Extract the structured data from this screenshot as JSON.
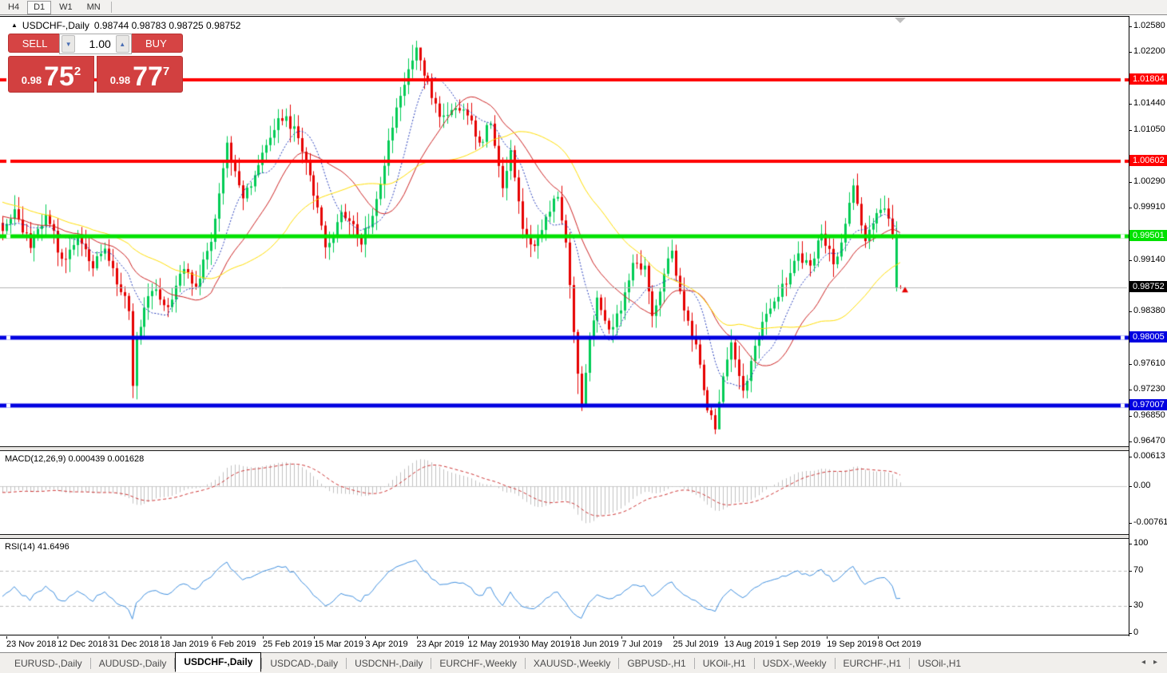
{
  "timeframe_bar": {
    "items": [
      {
        "label": "H4",
        "active": false
      },
      {
        "label": "D1",
        "active": true
      },
      {
        "label": "W1",
        "active": false
      },
      {
        "label": "MN",
        "active": false
      }
    ]
  },
  "chart_header": {
    "collapse_icon": "▲",
    "symbol": "USDCHF-,Daily",
    "open": "0.98744",
    "high": "0.98783",
    "low": "0.98725",
    "close": "0.98752",
    "ohlc_text": "0.98744 0.98783 0.98725 0.98752"
  },
  "trade_panel": {
    "sell_label": "SELL",
    "buy_label": "BUY",
    "volume": "1.00",
    "spin_down_icon": "▼",
    "spin_up_icon": "▲",
    "sell_price_small": "0.98",
    "sell_price_big": "75",
    "sell_price_sup": "2",
    "buy_price_small": "0.98",
    "buy_price_big": "77",
    "buy_price_sup": "7"
  },
  "chart_data": {
    "type": "candlestick",
    "symbol": "USDCHF",
    "timeframe": "Daily",
    "price_range": {
      "top": 1.0258,
      "bottom": 0.9647
    },
    "price_axis_ticks": [
      {
        "label": "1.02580",
        "value": 1.0258
      },
      {
        "label": "1.02200",
        "value": 1.022
      },
      {
        "label": "1.01440",
        "value": 1.0144
      },
      {
        "label": "1.01050",
        "value": 1.0105
      },
      {
        "label": "1.00290",
        "value": 1.0029
      },
      {
        "label": "0.99910",
        "value": 0.9991
      },
      {
        "label": "0.99140",
        "value": 0.9914
      },
      {
        "label": "0.98380",
        "value": 0.9838
      },
      {
        "label": "0.97610",
        "value": 0.9761
      },
      {
        "label": "0.97230",
        "value": 0.9723
      },
      {
        "label": "0.96850",
        "value": 0.9685
      },
      {
        "label": "0.96470",
        "value": 0.9647
      }
    ],
    "level_lines": [
      {
        "label": "1.01804",
        "value": 1.01804,
        "color": "#ff0000",
        "thickness": 4
      },
      {
        "label": "1.00602",
        "value": 1.00602,
        "color": "#ff0000",
        "thickness": 4
      },
      {
        "label": "0.99501",
        "value": 0.99501,
        "color": "#00e100",
        "thickness": 5
      },
      {
        "label": "0.98005",
        "value": 0.98005,
        "color": "#0000e0",
        "thickness": 5
      },
      {
        "label": "0.97007",
        "value": 0.97007,
        "color": "#0000e0",
        "thickness": 5
      }
    ],
    "current_price": {
      "label": "0.98752",
      "value": 0.98752,
      "line_color": "#b4b4b4",
      "label_bg": "#000000"
    },
    "x_dates": [
      "23 Nov 2018",
      "12 Dec 2018",
      "31 Dec 2018",
      "18 Jan 2019",
      "6 Feb 2019",
      "25 Feb 2019",
      "15 Mar 2019",
      "3 Apr 2019",
      "23 Apr 2019",
      "12 May 2019",
      "30 May 2019",
      "18 Jun 2019",
      "7 Jul 2019",
      "25 Jul 2019",
      "13 Aug 2019",
      "1 Sep 2019",
      "19 Sep 2019",
      "8 Oct 2019"
    ],
    "candles": {
      "count": 229,
      "close_anchors": [
        [
          0,
          0.9958
        ],
        [
          3,
          0.999
        ],
        [
          7,
          0.9933
        ],
        [
          11,
          0.9982
        ],
        [
          15,
          0.9917
        ],
        [
          19,
          0.9948
        ],
        [
          23,
          0.9903
        ],
        [
          26,
          0.9932
        ],
        [
          30,
          0.9868
        ],
        [
          32,
          0.984
        ],
        [
          33,
          0.973
        ],
        [
          34,
          0.98
        ],
        [
          36,
          0.9845
        ],
        [
          39,
          0.9872
        ],
        [
          42,
          0.9846
        ],
        [
          46,
          0.9902
        ],
        [
          49,
          0.9876
        ],
        [
          53,
          0.9942
        ],
        [
          57,
          1.0088
        ],
        [
          61,
          1.0006
        ],
        [
          65,
          1.0055
        ],
        [
          70,
          1.0124
        ],
        [
          74,
          1.0112
        ],
        [
          78,
          1.004
        ],
        [
          82,
          0.9934
        ],
        [
          86,
          0.9986
        ],
        [
          89,
          0.9968
        ],
        [
          91,
          0.9938
        ],
        [
          95,
          1.0005
        ],
        [
          99,
          1.011
        ],
        [
          103,
          1.0196
        ],
        [
          105,
          1.0228
        ],
        [
          108,
          1.0178
        ],
        [
          111,
          1.0126
        ],
        [
          114,
          1.0136
        ],
        [
          118,
          1.0128
        ],
        [
          121,
          1.0088
        ],
        [
          124,
          1.0116
        ],
        [
          127,
          1.0021
        ],
        [
          129,
          1.0077
        ],
        [
          132,
          0.9961
        ],
        [
          135,
          0.9936
        ],
        [
          138,
          0.9979
        ],
        [
          141,
          1.0008
        ],
        [
          143,
          0.9941
        ],
        [
          146,
          0.9748
        ],
        [
          147,
          0.9701
        ],
        [
          149,
          0.9799
        ],
        [
          151,
          0.986
        ],
        [
          154,
          0.9813
        ],
        [
          157,
          0.9841
        ],
        [
          160,
          0.9911
        ],
        [
          163,
          0.9907
        ],
        [
          165,
          0.9833
        ],
        [
          168,
          0.9895
        ],
        [
          170,
          0.9929
        ],
        [
          173,
          0.9841
        ],
        [
          176,
          0.9791
        ],
        [
          179,
          0.9694
        ],
        [
          181,
          0.9666
        ],
        [
          183,
          0.9744
        ],
        [
          185,
          0.9794
        ],
        [
          188,
          0.9723
        ],
        [
          191,
          0.9789
        ],
        [
          194,
          0.9836
        ],
        [
          197,
          0.9861
        ],
        [
          200,
          0.9896
        ],
        [
          202,
          0.9925
        ],
        [
          205,
          0.9907
        ],
        [
          208,
          0.9954
        ],
        [
          211,
          0.9909
        ],
        [
          213,
          0.9941
        ],
        [
          216,
          1.0025
        ],
        [
          219,
          0.9943
        ],
        [
          221,
          0.9969
        ],
        [
          224,
          0.9991
        ],
        [
          226,
          0.9953
        ],
        [
          227,
          0.9874
        ],
        [
          228,
          0.98752
        ]
      ],
      "wick_overrides": {
        "33": [
          null,
          0.9712
        ],
        "103": [
          1.0212,
          null
        ],
        "104": [
          1.0232,
          null
        ],
        "105": [
          1.0238,
          null
        ],
        "106": [
          1.0226,
          null
        ],
        "146": [
          null,
          0.9718
        ],
        "147": [
          null,
          0.9693
        ],
        "148": [
          null,
          0.972
        ],
        "180": [
          null,
          0.968
        ],
        "181": [
          null,
          0.9659
        ],
        "182": [
          null,
          0.9675
        ],
        "188": [
          null,
          0.9712
        ],
        "216": [
          1.0035,
          null
        ],
        "227": [
          null,
          0.9869
        ]
      },
      "bull_overrides": [
        227
      ],
      "bear_overrides": [
        228
      ],
      "last_ohlc": [
        0.98744,
        0.98783,
        0.98725,
        0.98752
      ]
    },
    "colors": {
      "bull": "#00cc55",
      "bear": "#e60000",
      "ma_fast": "#2038b8",
      "ma_mid": "#cc2222",
      "ma_slow": "#ffdd00",
      "macd_hist": "#c0c0c0",
      "macd_signal": "#cc3333",
      "rsi_line": "#3e8ede"
    },
    "moving_averages": [
      {
        "period": 10,
        "color_key": "ma_fast",
        "dotted": true
      },
      {
        "period": 21,
        "color_key": "ma_mid",
        "dotted": false
      },
      {
        "period": 40,
        "color_key": "ma_slow",
        "dotted": false
      }
    ],
    "macd": {
      "label": "MACD(12,26,9) 0.000439 0.001628",
      "fast": 12,
      "slow": 26,
      "signal": 9,
      "axis_labels": [
        {
          "label": "0.00613",
          "value": 0.00613
        },
        {
          "label": "0.00",
          "value": 0
        },
        {
          "label": "-0.00761",
          "value": -0.00761
        }
      ]
    },
    "rsi": {
      "label": "RSI(14) 41.6496",
      "period": 14,
      "value": 41.6496,
      "level_lines": [
        70,
        30
      ],
      "axis_labels": [
        {
          "label": "100",
          "value": 100
        },
        {
          "label": "70",
          "value": 70
        },
        {
          "label": "30",
          "value": 30
        },
        {
          "label": "0",
          "value": 0
        }
      ]
    },
    "trade_marker": {
      "value": 0.9871,
      "color": "#e60000"
    }
  },
  "tabs": {
    "items": [
      {
        "label": "EURUSD-,Daily",
        "active": false
      },
      {
        "label": "AUDUSD-,Daily",
        "active": false
      },
      {
        "label": "USDCHF-,Daily",
        "active": true
      },
      {
        "label": "USDCAD-,Daily",
        "active": false
      },
      {
        "label": "USDCNH-,Daily",
        "active": false
      },
      {
        "label": "EURCHF-,Weekly",
        "active": false
      },
      {
        "label": "XAUUSD-,Weekly",
        "active": false
      },
      {
        "label": "GBPUSD-,H1",
        "active": false
      },
      {
        "label": "UKOil-,H1",
        "active": false
      },
      {
        "label": "USDX-,Weekly",
        "active": false
      },
      {
        "label": "EURCHF-,H1",
        "active": false
      },
      {
        "label": "USOil-,H1",
        "active": false
      }
    ],
    "scroll_left_icon": "◂",
    "scroll_right_icon": "▸"
  }
}
